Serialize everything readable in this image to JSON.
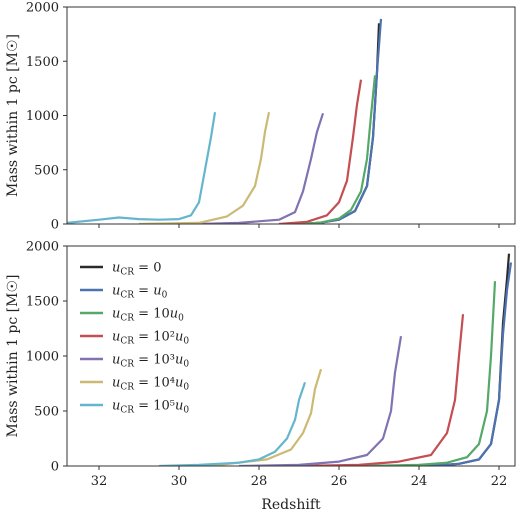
{
  "chart_data": [
    {
      "type": "line",
      "panel": "top",
      "ylabel": "Mass within 1 pc [M☉]",
      "xlabel": "",
      "xlim": [
        32.8,
        21.6
      ],
      "ylim": [
        0,
        2000
      ],
      "x_reversed": true,
      "yticks": [
        "0",
        "500",
        "1000",
        "1500",
        "2000"
      ],
      "xticks": [
        "32",
        "30",
        "28",
        "26",
        "24",
        "22"
      ],
      "show_x_tick_labels": false,
      "series": [
        {
          "color": "#2b2b2b",
          "x": [
            27.0,
            26.5,
            26.0,
            25.6,
            25.3,
            25.15,
            25.05,
            25.0
          ],
          "y": [
            0,
            10,
            40,
            120,
            350,
            800,
            1400,
            1850
          ]
        },
        {
          "color": "#4c72b0",
          "x": [
            27.0,
            26.5,
            26.0,
            25.6,
            25.3,
            25.15,
            25.05,
            24.95
          ],
          "y": [
            0,
            10,
            40,
            120,
            350,
            800,
            1400,
            1890
          ]
        },
        {
          "color": "#55a868",
          "x": [
            27.0,
            26.5,
            26.0,
            25.7,
            25.45,
            25.3,
            25.2,
            25.1
          ],
          "y": [
            0,
            10,
            50,
            130,
            300,
            600,
            1000,
            1370
          ]
        },
        {
          "color": "#c44e52",
          "x": [
            27.5,
            26.8,
            26.3,
            26.0,
            25.8,
            25.65,
            25.55,
            25.45
          ],
          "y": [
            0,
            20,
            80,
            200,
            400,
            800,
            1100,
            1330
          ]
        },
        {
          "color": "#8172b2",
          "x": [
            29.5,
            28.5,
            27.5,
            27.1,
            26.9,
            26.7,
            26.55,
            26.4
          ],
          "y": [
            0,
            10,
            40,
            110,
            300,
            600,
            850,
            1020
          ]
        },
        {
          "color": "#ccb974",
          "x": [
            31.0,
            29.5,
            28.8,
            28.4,
            28.1,
            27.95,
            27.85,
            27.75
          ],
          "y": [
            0,
            10,
            70,
            170,
            350,
            600,
            850,
            1030
          ]
        },
        {
          "color": "#64b5cd",
          "x": [
            32.8,
            32.0,
            31.5,
            31.0,
            30.5,
            30.0,
            29.7,
            29.5,
            29.35,
            29.2,
            29.1
          ],
          "y": [
            10,
            40,
            60,
            45,
            40,
            45,
            80,
            200,
            500,
            800,
            1030
          ]
        }
      ]
    },
    {
      "type": "line",
      "panel": "bottom",
      "ylabel": "Mass within 1 pc [M☉]",
      "xlabel": "Redshift",
      "xlim": [
        32.8,
        21.6
      ],
      "ylim": [
        0,
        2000
      ],
      "x_reversed": true,
      "yticks": [
        "0",
        "500",
        "1000",
        "1500",
        "2000"
      ],
      "xticks": [
        "32",
        "30",
        "28",
        "26",
        "24",
        "22"
      ],
      "show_x_tick_labels": true,
      "legend_position": "upper-left",
      "series": [
        {
          "name": "u_CR = 0",
          "legend": [
            "u",
            "CR",
            " = 0",
            "",
            ""
          ],
          "color": "#2b2b2b",
          "x": [
            25.0,
            23.5,
            23.0,
            22.5,
            22.2,
            22.0,
            21.9,
            21.8,
            21.75
          ],
          "y": [
            0,
            5,
            20,
            60,
            200,
            600,
            1300,
            1700,
            1930
          ]
        },
        {
          "name": "u_CR = u_0",
          "legend": [
            "u",
            "CR",
            " = ",
            "u",
            "0"
          ],
          "color": "#4c72b0",
          "x": [
            25.0,
            23.5,
            23.0,
            22.5,
            22.2,
            22.0,
            21.9,
            21.8,
            21.7
          ],
          "y": [
            0,
            5,
            20,
            60,
            200,
            600,
            1200,
            1600,
            1850
          ]
        },
        {
          "name": "u_CR = 10u_0",
          "legend": [
            "u",
            "CR",
            " = 10",
            "u",
            "0"
          ],
          "color": "#55a868",
          "x": [
            25.5,
            24.0,
            23.3,
            22.8,
            22.5,
            22.3,
            22.2,
            22.1
          ],
          "y": [
            0,
            10,
            30,
            80,
            200,
            500,
            1000,
            1680
          ]
        },
        {
          "name": "u_CR = 10^2u_0",
          "legend": [
            "u",
            "CR",
            " = 10²",
            "u",
            "0"
          ],
          "color": "#c44e52",
          "x": [
            27.0,
            25.5,
            24.5,
            23.7,
            23.3,
            23.1,
            23.0,
            22.9
          ],
          "y": [
            0,
            10,
            40,
            100,
            300,
            600,
            1000,
            1380
          ]
        },
        {
          "name": "u_CR = 10^3u_0",
          "legend": [
            "u",
            "CR",
            " = 10³",
            "u",
            "0"
          ],
          "color": "#8172b2",
          "x": [
            28.5,
            27.0,
            26.0,
            25.3,
            24.9,
            24.7,
            24.6,
            24.45
          ],
          "y": [
            0,
            10,
            40,
            100,
            250,
            500,
            850,
            1180
          ]
        },
        {
          "name": "u_CR = 10^4u_0",
          "legend": [
            "u",
            "CR",
            " = 10⁴",
            "u",
            "0"
          ],
          "color": "#ccb974",
          "x": [
            30.0,
            29.0,
            27.8,
            27.2,
            26.9,
            26.7,
            26.6,
            26.45
          ],
          "y": [
            0,
            10,
            60,
            150,
            300,
            480,
            700,
            880
          ]
        },
        {
          "name": "u_CR = 10^5u_0",
          "legend": [
            "u",
            "CR",
            " = 10⁵",
            "u",
            "0"
          ],
          "color": "#64b5cd",
          "x": [
            30.5,
            29.5,
            28.5,
            28.0,
            27.6,
            27.3,
            27.1,
            27.0,
            26.85
          ],
          "y": [
            0,
            10,
            30,
            60,
            130,
            250,
            420,
            600,
            760
          ]
        }
      ]
    }
  ]
}
